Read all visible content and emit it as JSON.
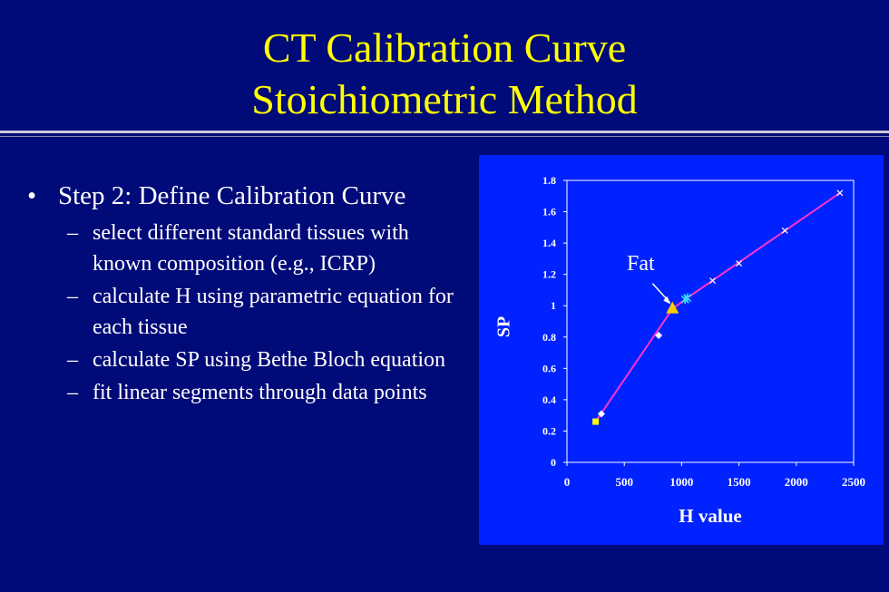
{
  "slide": {
    "title_line1": "CT Calibration Curve",
    "title_line2": "Stoichiometric Method",
    "bullet": "Step 2: Define Calibration Curve",
    "bullet_marker": "•",
    "sub_marker": "–",
    "sub_bullets": [
      "select different standard tissues with known composition (e.g., ICRP)",
      "calculate H  using parametric equation for each tissue",
      "calculate SP using Bethe Bloch equation",
      "fit linear segments through data points"
    ]
  },
  "chart_data": {
    "type": "scatter",
    "xlabel": "H value",
    "ylabel": "SP",
    "xlim": [
      0,
      2500
    ],
    "ylim": [
      0,
      1.8
    ],
    "xticks": [
      "0",
      "500",
      "1000",
      "1500",
      "2000",
      "2500"
    ],
    "yticks": [
      "0",
      "0.2",
      "0.4",
      "0.6",
      "0.8",
      "1",
      "1.2",
      "1.4",
      "1.6",
      "1.8"
    ],
    "annotation": "Fat",
    "colors": {
      "background": "#0022ff",
      "line": "#ff33cc",
      "fat": "#ffcc00",
      "cluster": "#33ddff",
      "points": "#ffffff"
    },
    "points": [
      {
        "x": 250,
        "y": 0.26,
        "marker": "square",
        "color": "#ffff00"
      },
      {
        "x": 300,
        "y": 0.31,
        "marker": "diamond",
        "color": "#ffffff"
      },
      {
        "x": 800,
        "y": 0.81,
        "marker": "diamond",
        "color": "#ffffff"
      },
      {
        "x": 920,
        "y": 0.98,
        "marker": "triangle",
        "color": "#ffcc00"
      },
      {
        "x": 1030,
        "y": 1.04,
        "marker": "star",
        "color": "#33ddff"
      },
      {
        "x": 1050,
        "y": 1.05,
        "marker": "star",
        "color": "#33ddff"
      },
      {
        "x": 1270,
        "y": 1.16,
        "marker": "x",
        "color": "#ffffff"
      },
      {
        "x": 1500,
        "y": 1.27,
        "marker": "x",
        "color": "#ffffff"
      },
      {
        "x": 1900,
        "y": 1.48,
        "marker": "x",
        "color": "#ffffff"
      },
      {
        "x": 2380,
        "y": 1.72,
        "marker": "x",
        "color": "#ffffff"
      }
    ],
    "line": [
      {
        "x": 250,
        "y": 0.26
      },
      {
        "x": 920,
        "y": 0.98
      },
      {
        "x": 1050,
        "y": 1.05
      },
      {
        "x": 2380,
        "y": 1.72
      }
    ]
  }
}
